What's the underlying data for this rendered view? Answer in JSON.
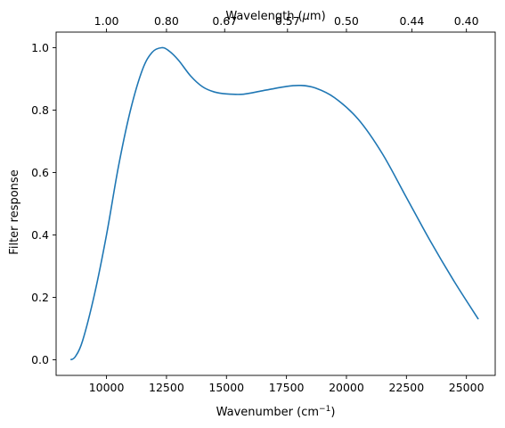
{
  "chart_data": {
    "type": "line",
    "xlabel": "Wavenumber (cm",
    "xlabel_sup": "−1",
    "xlabel_end": ")",
    "ylabel": "Filter response",
    "top_xlabel": "Wavelength (",
    "top_xlabel_mu": "μ",
    "top_xlabel_end": "m)",
    "xlim": [
      7900,
      26200
    ],
    "ylim": [
      -0.05,
      1.05
    ],
    "grid": false,
    "x_ticks": [
      10000,
      12500,
      15000,
      17500,
      20000,
      22500,
      25000
    ],
    "x_tick_labels": [
      "10000",
      "12500",
      "15000",
      "17500",
      "20000",
      "22500",
      "25000"
    ],
    "y_ticks": [
      0.0,
      0.2,
      0.4,
      0.6,
      0.8,
      1.0
    ],
    "y_tick_labels": [
      "0.0",
      "0.2",
      "0.4",
      "0.6",
      "0.8",
      "1.0"
    ],
    "top_ticks_wavenumber": [
      10000,
      12500,
      14925,
      17544,
      20000,
      22727,
      25000
    ],
    "top_tick_labels": [
      "1.00",
      "0.80",
      "0.67",
      "0.57",
      "0.50",
      "0.44",
      "0.40"
    ],
    "series": [
      {
        "color": "#1f77b4",
        "x": [
          8500,
          8700,
          9000,
          9500,
          10000,
          10500,
          11000,
          11500,
          11900,
          12300,
          12600,
          13000,
          13500,
          14000,
          14500,
          15000,
          15700,
          16500,
          17500,
          18100,
          18700,
          19500,
          20500,
          21500,
          22500,
          23500,
          24500,
          25500
        ],
        "y": [
          0.0,
          0.01,
          0.06,
          0.21,
          0.4,
          0.62,
          0.8,
          0.93,
          0.985,
          1.0,
          0.99,
          0.96,
          0.91,
          0.875,
          0.858,
          0.852,
          0.851,
          0.862,
          0.876,
          0.879,
          0.871,
          0.84,
          0.77,
          0.66,
          0.52,
          0.38,
          0.25,
          0.13
        ]
      }
    ]
  }
}
